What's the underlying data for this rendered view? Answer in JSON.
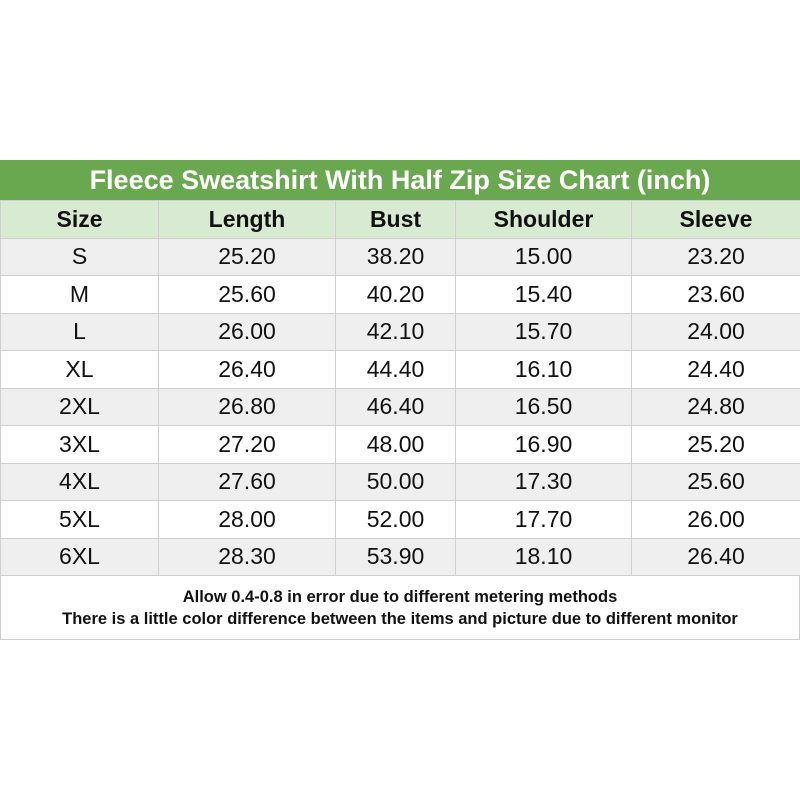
{
  "title": "Fleece Sweatshirt With Half Zip Size Chart (inch)",
  "colors": {
    "title_bg": "#6aa84f",
    "header_bg": "#d9ead3",
    "stripe": "#efefef"
  },
  "columns": [
    "Size",
    "Length",
    "Bust",
    "Shoulder",
    "Sleeve"
  ],
  "rows": [
    [
      "S",
      "25.20",
      "38.20",
      "15.00",
      "23.20"
    ],
    [
      "M",
      "25.60",
      "40.20",
      "15.40",
      "23.60"
    ],
    [
      "L",
      "26.00",
      "42.10",
      "15.70",
      "24.00"
    ],
    [
      "XL",
      "26.40",
      "44.40",
      "16.10",
      "24.40"
    ],
    [
      "2XL",
      "26.80",
      "46.40",
      "16.50",
      "24.80"
    ],
    [
      "3XL",
      "27.20",
      "48.00",
      "16.90",
      "25.20"
    ],
    [
      "4XL",
      "27.60",
      "50.00",
      "17.30",
      "25.60"
    ],
    [
      "5XL",
      "28.00",
      "52.00",
      "17.70",
      "26.00"
    ],
    [
      "6XL",
      "28.30",
      "53.90",
      "18.10",
      "26.40"
    ]
  ],
  "notes": [
    "Allow 0.4-0.8 in error due to different metering methods",
    "There is a little color difference between the items and picture due to different monitor"
  ]
}
